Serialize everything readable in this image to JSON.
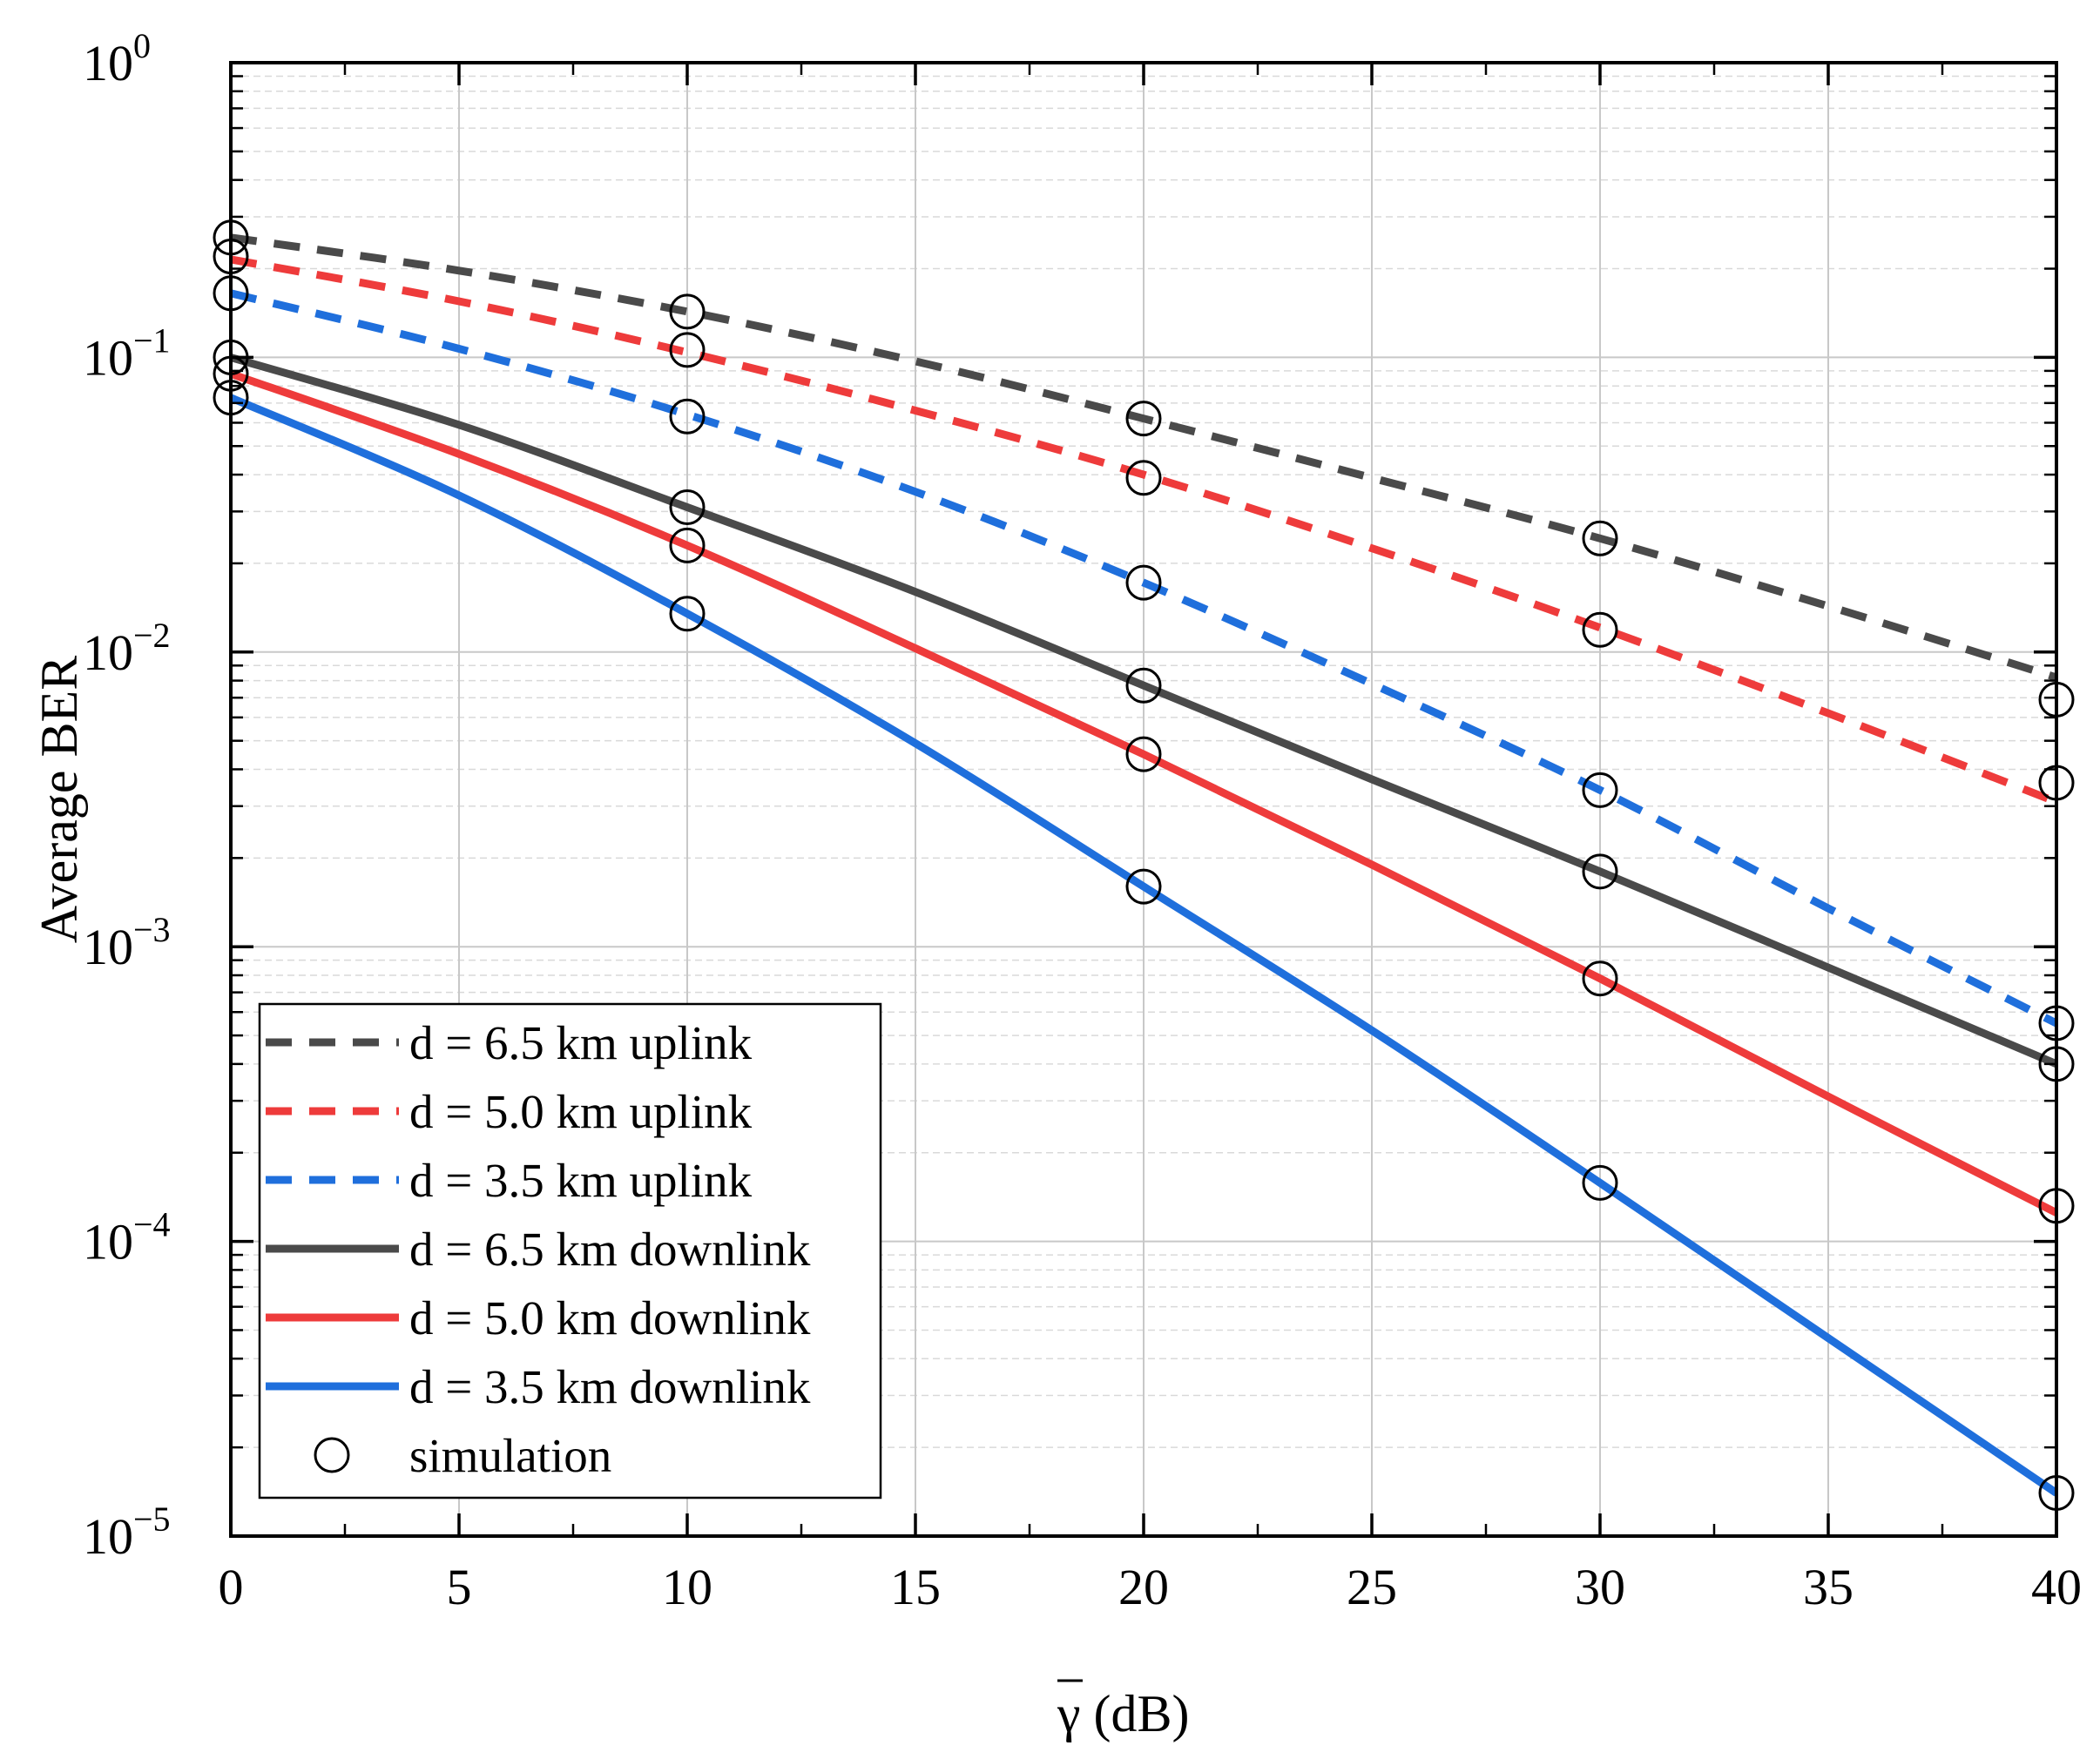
{
  "chart_data": {
    "type": "line",
    "title": "",
    "xlabel": "γ (dB)",
    "xlabel_symbol": "γ",
    "xlabel_unit": "(dB)",
    "ylabel": "Average BER",
    "xlim": [
      0,
      40
    ],
    "ylim": [
      1e-05,
      1
    ],
    "yscale": "log",
    "x_ticks": [
      0,
      5,
      10,
      15,
      20,
      25,
      30,
      35,
      40
    ],
    "y_ticks": [
      {
        "base": "10",
        "exp": "0"
      },
      {
        "base": "10",
        "exp": "−1"
      },
      {
        "base": "10",
        "exp": "−2"
      },
      {
        "base": "10",
        "exp": "−3"
      },
      {
        "base": "10",
        "exp": "−4"
      },
      {
        "base": "10",
        "exp": "−5"
      }
    ],
    "grid": true,
    "legend_position": "bottom-left",
    "colors": {
      "dark": "#4a4a4a",
      "red": "#ee3b3b",
      "blue": "#1f6fdc",
      "marker": "#000000"
    },
    "series": [
      {
        "name": "d = 6.5 km uplink",
        "color": "#4a4a4a",
        "style": "dashed",
        "x": [
          0,
          5,
          10,
          15,
          20,
          25,
          30,
          35,
          40
        ],
        "y": [
          0.255,
          0.197,
          0.143,
          0.097,
          0.062,
          0.039,
          0.0243,
          0.0143,
          0.0082
        ]
      },
      {
        "name": "d = 5.0 km uplink",
        "color": "#ee3b3b",
        "style": "dashed",
        "x": [
          0,
          5,
          10,
          15,
          20,
          25,
          30,
          35,
          40
        ],
        "y": [
          0.215,
          0.155,
          0.104,
          0.066,
          0.04,
          0.0225,
          0.0121,
          0.0062,
          0.0031
        ],
        "sim_y": [
          0.22,
          0.106,
          0.039,
          0.0119,
          0.0036
        ]
      },
      {
        "name": "d = 3.5 km uplink",
        "color": "#1f6fdc",
        "style": "dashed",
        "x": [
          0,
          5,
          10,
          15,
          20,
          25,
          30,
          35,
          40
        ],
        "y": [
          0.165,
          0.107,
          0.064,
          0.035,
          0.0172,
          0.0078,
          0.0034,
          0.00135,
          0.00055
        ],
        "sim_y": [
          0.165,
          0.063,
          0.0172,
          0.0034,
          0.00055
        ]
      },
      {
        "name": "d = 6.5 km downlink",
        "color": "#4a4a4a",
        "style": "solid",
        "x": [
          0,
          5,
          10,
          15,
          20,
          25,
          30,
          35,
          40
        ],
        "y": [
          0.1,
          0.059,
          0.031,
          0.016,
          0.0077,
          0.0037,
          0.0018,
          0.00085,
          0.0004
        ],
        "sim_y": [
          0.1,
          0.031,
          0.0077,
          0.0018,
          0.0004
        ]
      },
      {
        "name": "d = 5.0 km downlink",
        "color": "#ee3b3b",
        "style": "solid",
        "x": [
          0,
          5,
          10,
          15,
          20,
          25,
          30,
          35,
          40
        ],
        "y": [
          0.088,
          0.047,
          0.023,
          0.0103,
          0.0045,
          0.0019,
          0.00078,
          0.00031,
          0.000125
        ],
        "sim_y": [
          0.088,
          0.023,
          0.0045,
          0.00078,
          0.000132
        ]
      },
      {
        "name": "d = 3.5 km downlink",
        "color": "#1f6fdc",
        "style": "solid",
        "x": [
          0,
          5,
          10,
          15,
          20,
          25,
          30,
          35,
          40
        ],
        "y": [
          0.073,
          0.034,
          0.0135,
          0.0049,
          0.0016,
          0.00052,
          0.000158,
          4.7e-05,
          1.4e-05
        ],
        "sim_y": [
          0.073,
          0.0135,
          0.0016,
          0.000158,
          1.4e-05
        ]
      }
    ],
    "simulation": {
      "name": "simulation",
      "x": [
        0,
        0,
        0,
        0,
        0,
        0,
        10,
        10,
        10,
        10,
        10,
        10,
        20,
        20,
        20,
        20,
        20,
        20,
        30,
        30,
        30,
        30,
        30,
        30,
        40,
        40,
        40,
        40,
        40,
        40
      ],
      "y": [
        0.255,
        0.22,
        0.165,
        0.1,
        0.088,
        0.073,
        0.143,
        0.106,
        0.063,
        0.031,
        0.023,
        0.0135,
        0.062,
        0.039,
        0.0172,
        0.0077,
        0.0045,
        0.0016,
        0.0243,
        0.0119,
        0.0034,
        0.0018,
        0.00078,
        0.000158,
        0.0069,
        0.0036,
        0.00055,
        0.0004,
        0.000132,
        1.4e-05
      ]
    }
  }
}
